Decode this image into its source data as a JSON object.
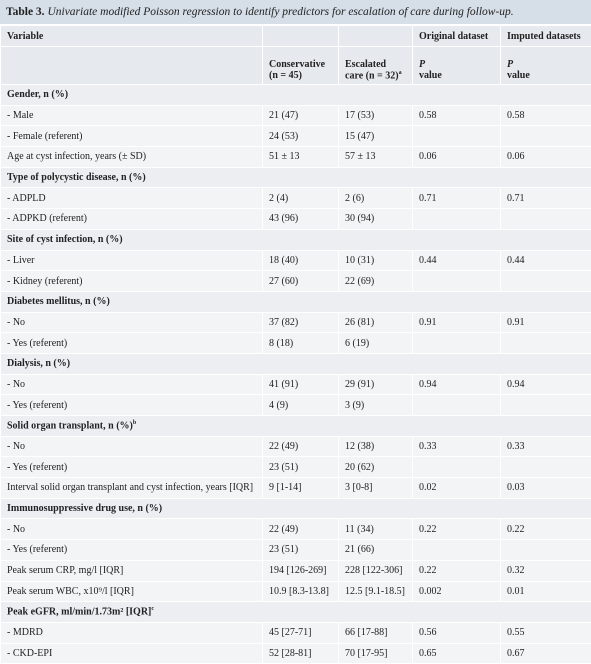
{
  "header": {
    "label": "Table 3.",
    "text": "Univariate modified Poisson regression to identify predictors for escalation of care during follow-up."
  },
  "table": {
    "columns": {
      "variable": "Variable",
      "original": "Original dataset",
      "imputed": "Imputed datasets",
      "conservative": "Conservative (n = 45)",
      "escalated": "Escalated care (n = 32)",
      "escalated_sup": "a",
      "p_symbol_original": "P",
      "p_word_original": "value",
      "p_symbol_imputed": "P",
      "p_word_imputed": "value"
    },
    "rows": [
      {
        "section": "Gender, n (%)"
      },
      {
        "label": "- Male",
        "conservative": "21 (47)",
        "escalated": "17 (53)",
        "p_original": "0.58",
        "p_imputed": "0.58"
      },
      {
        "label": "- Female (referent)",
        "conservative": "24 (53)",
        "escalated": "15 (47)"
      },
      {
        "label": "Age at cyst infection, years (± SD)",
        "conservative": "51 ± 13",
        "escalated": "57 ± 13",
        "p_original": "0.06",
        "p_imputed": "0.06"
      },
      {
        "section": "Type of polycystic disease, n (%)"
      },
      {
        "label": "- ADPLD",
        "conservative": "2 (4)",
        "escalated": "2 (6)",
        "p_original": "0.71",
        "p_imputed": "0.71"
      },
      {
        "label": "- ADPKD (referent)",
        "conservative": "43 (96)",
        "escalated": "30 (94)"
      },
      {
        "section": "Site of cyst infection, n (%)"
      },
      {
        "label": "- Liver",
        "conservative": "18 (40)",
        "escalated": "10 (31)",
        "p_original": "0.44",
        "p_imputed": "0.44"
      },
      {
        "label": "- Kidney (referent)",
        "conservative": "27 (60)",
        "escalated": "22 (69)"
      },
      {
        "section": "Diabetes mellitus, n (%)"
      },
      {
        "label": "- No",
        "conservative": "37 (82)",
        "escalated": "26 (81)",
        "p_original": "0.91",
        "p_imputed": "0.91"
      },
      {
        "label": "- Yes (referent)",
        "conservative": "8 (18)",
        "escalated": "6 (19)"
      },
      {
        "section": "Dialysis, n (%)"
      },
      {
        "label": "- No",
        "conservative": "41 (91)",
        "escalated": "29 (91)",
        "p_original": "0.94",
        "p_imputed": "0.94"
      },
      {
        "label": "- Yes (referent)",
        "conservative": "4 (9)",
        "escalated": "3 (9)"
      },
      {
        "section": "Solid organ transplant, n (%)",
        "sup": "b"
      },
      {
        "label": "- No",
        "conservative": "22 (49)",
        "escalated": "12 (38)",
        "p_original": "0.33",
        "p_imputed": "0.33"
      },
      {
        "label": "- Yes (referent)",
        "conservative": "23 (51)",
        "escalated": "20 (62)"
      },
      {
        "label": "Interval solid organ transplant and cyst infection, years [IQR]",
        "conservative": "9 [1-14]",
        "escalated": "3 [0-8]",
        "p_original": "0.02",
        "p_imputed": "0.03"
      },
      {
        "section": "Immunosuppressive drug use, n (%)"
      },
      {
        "label": "- No",
        "conservative": "22 (49)",
        "escalated": "11 (34)",
        "p_original": "0.22",
        "p_imputed": "0.22"
      },
      {
        "label": "- Yes (referent)",
        "conservative": "23 (51)",
        "escalated": "21 (66)"
      },
      {
        "label": "Peak serum CRP, mg/l [IQR]",
        "conservative": "194 [126-269]",
        "escalated": "228 [122-306]",
        "p_original": "0.22",
        "p_imputed": "0.32"
      },
      {
        "label": "Peak serum WBC, x10⁹/l [IQR]",
        "conservative": "10.9 [8.3-13.8]",
        "escalated": "12.5 [9.1-18.5]",
        "p_original": "0.002",
        "p_imputed": "0.01"
      },
      {
        "section": "Peak eGFR, ml/min/1.73m² [IQR]",
        "sup": "c"
      },
      {
        "label": "- MDRD",
        "conservative": "45 [27-71]",
        "escalated": "66 [17-88]",
        "p_original": "0.56",
        "p_imputed": "0.55"
      },
      {
        "label": "- CKD-EPI",
        "conservative": "52 [28-81]",
        "escalated": "70 [17-95]",
        "p_original": "0.65",
        "p_imputed": "0.67"
      }
    ]
  }
}
